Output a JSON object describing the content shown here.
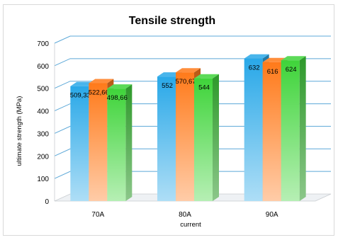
{
  "chart_data": {
    "type": "bar",
    "title": "Tensile strength",
    "xlabel": "current",
    "ylabel": "ultimate strength (MPa)",
    "categories": [
      "70A",
      "80A",
      "90A"
    ],
    "series": [
      {
        "values": [
          509.33,
          552,
          632
        ],
        "labels": [
          "509,33",
          "552",
          "632"
        ],
        "color": "#29a8e8"
      },
      {
        "values": [
          522.66,
          570.67,
          616
        ],
        "labels": [
          "522,66",
          "570,67",
          "616"
        ],
        "color": "#ff7a1a"
      },
      {
        "values": [
          498.66,
          544,
          624
        ],
        "labels": [
          "498,66",
          "544",
          "624"
        ],
        "color": "#3fd43a"
      }
    ],
    "ylim": [
      0,
      700
    ],
    "yticks": [
      "0",
      "100",
      "200",
      "300",
      "400",
      "500",
      "600",
      "700"
    ],
    "grid": true,
    "legend": "none",
    "style": "3d-column-gradient"
  }
}
